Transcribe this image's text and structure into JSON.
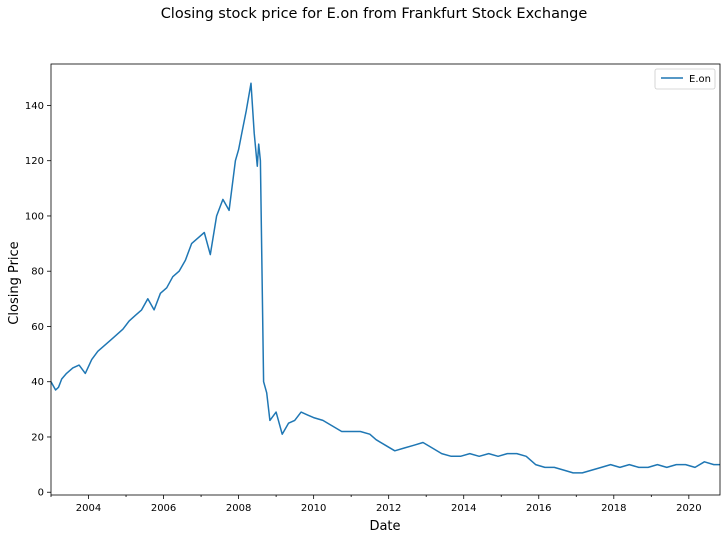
{
  "chart_data": {
    "type": "line",
    "title": "Closing stock price for E.on from Frankfurt Stock Exchange",
    "xlabel": "Date",
    "ylabel": "Closing Price",
    "xlim": [
      "2003-01-01",
      "2020-10-31"
    ],
    "ylim": [
      -1,
      155
    ],
    "x_ticks": [
      "2004",
      "2006",
      "2008",
      "2010",
      "2012",
      "2014",
      "2016",
      "2018",
      "2020"
    ],
    "y_ticks": [
      0,
      20,
      40,
      60,
      80,
      100,
      120,
      140
    ],
    "legend": {
      "placement": "top-right",
      "entries": [
        "E.on"
      ]
    },
    "grid": false,
    "series": [
      {
        "name": "E.on",
        "color": "#1f77b4",
        "x": [
          "2003-01-01",
          "2003-02-15",
          "2003-03-15",
          "2003-04-15",
          "2003-06-01",
          "2003-08-01",
          "2003-10-01",
          "2003-12-01",
          "2004-02-01",
          "2004-04-01",
          "2004-06-01",
          "2004-08-01",
          "2004-10-01",
          "2004-12-01",
          "2005-02-01",
          "2005-04-01",
          "2005-06-01",
          "2005-08-01",
          "2005-10-01",
          "2005-12-01",
          "2006-02-01",
          "2006-04-01",
          "2006-06-01",
          "2006-08-01",
          "2006-10-01",
          "2006-12-01",
          "2007-02-01",
          "2007-04-01",
          "2007-06-01",
          "2007-08-01",
          "2007-10-01",
          "2007-12-01",
          "2008-01-01",
          "2008-02-01",
          "2008-03-15",
          "2008-05-01",
          "2008-06-01",
          "2008-07-01",
          "2008-07-15",
          "2008-08-01",
          "2008-09-01",
          "2008-10-01",
          "2008-11-01",
          "2009-01-01",
          "2009-03-01",
          "2009-05-01",
          "2009-07-01",
          "2009-09-01",
          "2009-11-01",
          "2010-01-01",
          "2010-04-01",
          "2010-07-01",
          "2010-10-01",
          "2011-01-01",
          "2011-04-01",
          "2011-07-01",
          "2011-09-01",
          "2011-12-01",
          "2012-03-01",
          "2012-06-01",
          "2012-09-01",
          "2012-12-01",
          "2013-03-01",
          "2013-06-01",
          "2013-09-01",
          "2013-12-01",
          "2014-03-01",
          "2014-06-01",
          "2014-09-01",
          "2014-12-01",
          "2015-03-01",
          "2015-06-01",
          "2015-09-01",
          "2015-12-01",
          "2016-03-01",
          "2016-06-01",
          "2016-09-01",
          "2016-12-01",
          "2017-03-01",
          "2017-06-01",
          "2017-09-01",
          "2017-12-01",
          "2018-03-01",
          "2018-06-01",
          "2018-09-01",
          "2018-12-01",
          "2019-03-01",
          "2019-06-01",
          "2019-09-01",
          "2019-12-01",
          "2020-03-01",
          "2020-06-01",
          "2020-09-01",
          "2020-10-31"
        ],
        "values": [
          40,
          37,
          38,
          41,
          43,
          45,
          46,
          43,
          48,
          51,
          53,
          55,
          57,
          59,
          62,
          64,
          66,
          70,
          66,
          72,
          74,
          78,
          80,
          84,
          90,
          92,
          94,
          86,
          100,
          106,
          102,
          120,
          124,
          130,
          138,
          148,
          130,
          118,
          126,
          120,
          40,
          36,
          26,
          29,
          21,
          25,
          26,
          29,
          28,
          27,
          26,
          24,
          22,
          22,
          22,
          21,
          19,
          17,
          15,
          16,
          17,
          18,
          16,
          14,
          13,
          13,
          14,
          13,
          14,
          13,
          14,
          14,
          13,
          10,
          9,
          9,
          8,
          7,
          7,
          8,
          9,
          10,
          9,
          10,
          9,
          9,
          10,
          9,
          10,
          10,
          9,
          11,
          10,
          10
        ]
      }
    ]
  }
}
